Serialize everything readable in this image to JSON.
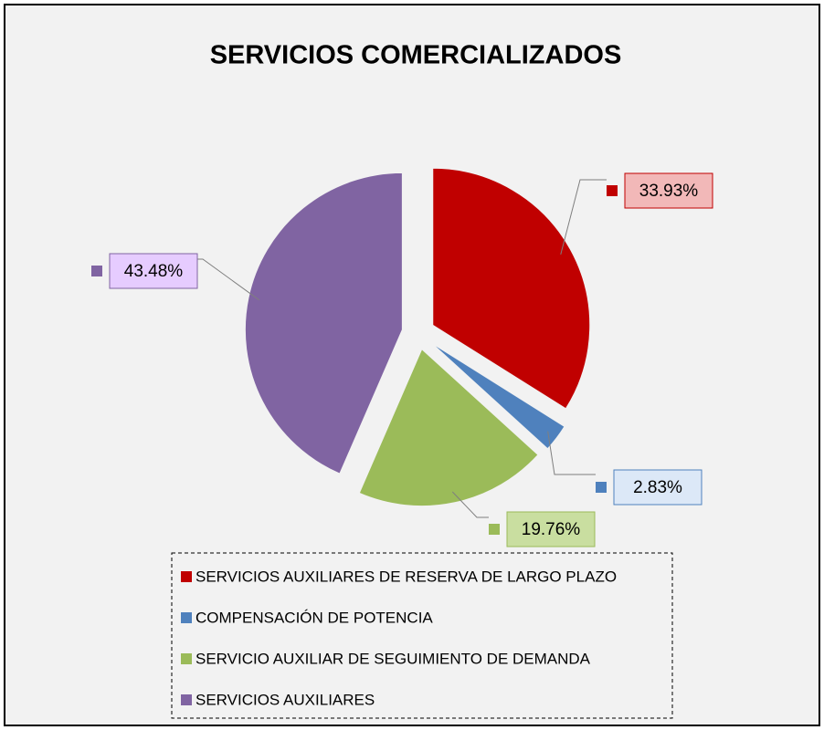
{
  "chart_data": {
    "type": "pie",
    "title": "SERVICIOS COMERCIALIZADOS",
    "categories": [
      "SERVICIOS AUXILIARES DE RESERVA DE LARGO PLAZO",
      "COMPENSACIÓN DE POTENCIA",
      "SERVICIO AUXILIAR DE SEGUIMIENTO DE DEMANDA",
      "SERVICIOS AUXILIARES"
    ],
    "values": [
      33.93,
      2.83,
      19.76,
      43.48
    ],
    "value_labels": [
      "33.93%",
      "2.83%",
      "19.76%",
      "43.48%"
    ],
    "colors": [
      "#c00000",
      "#4f81bd",
      "#9bbb59",
      "#8064a2"
    ],
    "label_colors": [
      "#f2b8b8",
      "#dce8f7",
      "#c9dea0",
      "#e6ccff"
    ],
    "legend": "bottom"
  }
}
